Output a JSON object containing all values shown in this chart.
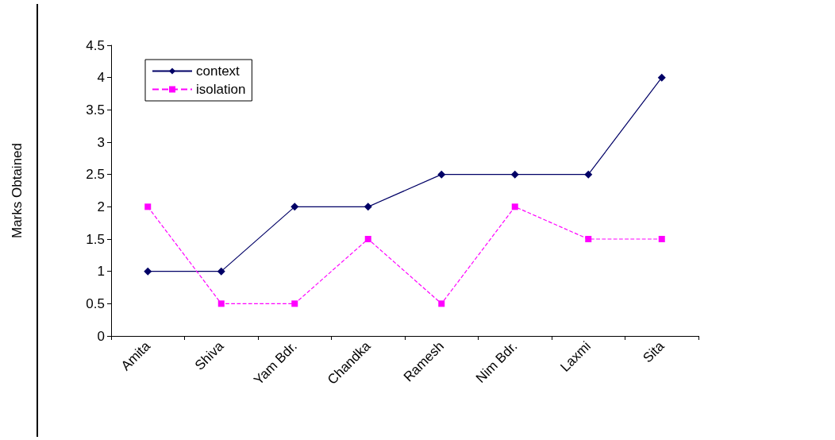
{
  "chart_data": {
    "type": "line",
    "ylabel": "Marks Obtained",
    "categories": [
      "Amita",
      "Shiva",
      "Yam Bdr.",
      "Chandka",
      "Ramesh",
      "Nim Bdr.",
      "Laxmi",
      "Sita"
    ],
    "series": [
      {
        "name": "context",
        "color": "#000066",
        "marker": "diamond",
        "line_style": "solid",
        "values": [
          1,
          1,
          2,
          2,
          2.5,
          2.5,
          2.5,
          4
        ]
      },
      {
        "name": "isolation",
        "color": "#ff00ff",
        "marker": "square",
        "line_style": "dashed",
        "values": [
          2,
          0.5,
          0.5,
          1.5,
          0.5,
          2,
          1.5,
          1.5
        ]
      }
    ],
    "ylim": [
      0,
      4.5
    ],
    "yticks": [
      0,
      0.5,
      1,
      1.5,
      2,
      2.5,
      3,
      3.5,
      4,
      4.5
    ],
    "grid": false,
    "legend": "top left"
  }
}
